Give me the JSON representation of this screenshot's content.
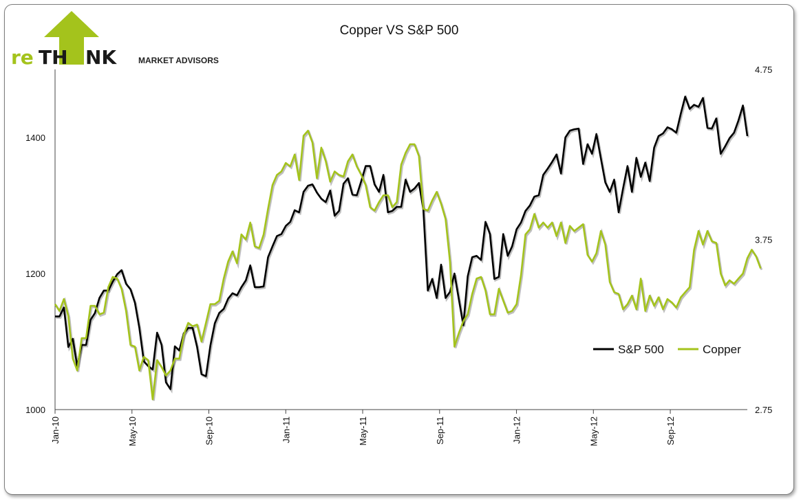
{
  "logo": {
    "prefix": "re",
    "th": "TH",
    "nk": "NK",
    "subtitle": "MARKET ADVISORS",
    "green": "#a4c31c",
    "dark": "#1a1a1a"
  },
  "chart_data": {
    "type": "line",
    "title": "Copper VS S&P 500",
    "xlabel": "",
    "x_tick_labels": [
      "Jan-10",
      "May-10",
      "Sep-10",
      "Jan-11",
      "May-11",
      "Sep-11",
      "Jan-12",
      "May-12",
      "Sep-12"
    ],
    "y_left": {
      "ticks": [
        "1000",
        "1200",
        "1400"
      ],
      "range": [
        1000,
        1500
      ]
    },
    "y_right": {
      "ticks": [
        "2.75",
        "3.75",
        "4.75"
      ],
      "range": [
        2.75,
        4.75
      ]
    },
    "grid": false,
    "legend": "right",
    "series": [
      {
        "name": "S&P 500",
        "axis": "left",
        "color": "#000000",
        "values": [
          1137,
          1137,
          1150,
          1092,
          1104,
          1064,
          1095,
          1095,
          1132,
          1142,
          1164,
          1175,
          1175,
          1188,
          1199,
          1205,
          1185,
          1177,
          1157,
          1120,
          1071,
          1064,
          1059,
          1113,
          1095,
          1040,
          1030,
          1093,
          1087,
          1112,
          1120,
          1120,
          1092,
          1052,
          1049,
          1094,
          1127,
          1142,
          1148,
          1163,
          1171,
          1168,
          1180,
          1190,
          1212,
          1180,
          1180,
          1181,
          1224,
          1240,
          1255,
          1258,
          1270,
          1276,
          1293,
          1290,
          1320,
          1329,
          1331,
          1319,
          1310,
          1305,
          1322,
          1285,
          1292,
          1332,
          1340,
          1316,
          1315,
          1336,
          1358,
          1358,
          1331,
          1320,
          1345,
          1290,
          1292,
          1298,
          1298,
          1338,
          1320,
          1325,
          1333,
          1294,
          1175,
          1192,
          1164,
          1213,
          1164,
          1173,
          1200,
          1162,
          1124,
          1196,
          1224,
          1226,
          1220,
          1276,
          1258,
          1192,
          1195,
          1258,
          1226,
          1240,
          1265,
          1275,
          1292,
          1300,
          1313,
          1315,
          1345,
          1354,
          1364,
          1375,
          1347,
          1400,
          1410,
          1412,
          1413,
          1361,
          1390,
          1376,
          1405,
          1369,
          1334,
          1320,
          1338,
          1290,
          1325,
          1358,
          1320,
          1370,
          1342,
          1363,
          1336,
          1385,
          1402,
          1406,
          1415,
          1412,
          1407,
          1435,
          1460,
          1442,
          1448,
          1445,
          1458,
          1414,
          1413,
          1428,
          1376,
          1387,
          1399,
          1407,
          1425,
          1447,
          1402
        ]
      },
      {
        "name": "Copper",
        "axis": "right",
        "color": "#a4c31c",
        "values": [
          3.37,
          3.33,
          3.4,
          3.3,
          3.05,
          2.98,
          3.17,
          3.17,
          3.36,
          3.36,
          3.31,
          3.32,
          3.47,
          3.53,
          3.52,
          3.46,
          3.33,
          3.13,
          3.12,
          2.98,
          3.06,
          3.04,
          2.81,
          3.04,
          3.0,
          2.95,
          2.98,
          3.05,
          3.05,
          3.19,
          3.26,
          3.24,
          3.25,
          3.15,
          3.26,
          3.37,
          3.37,
          3.39,
          3.52,
          3.62,
          3.68,
          3.61,
          3.78,
          3.75,
          3.85,
          3.71,
          3.7,
          3.78,
          3.93,
          4.07,
          4.13,
          4.15,
          4.2,
          4.18,
          4.25,
          4.1,
          4.36,
          4.39,
          4.32,
          4.11,
          4.29,
          4.21,
          4.09,
          4.15,
          4.13,
          4.12,
          4.21,
          4.25,
          4.18,
          4.13,
          4.07,
          3.94,
          3.92,
          3.97,
          4.01,
          4.01,
          3.94,
          3.97,
          4.19,
          4.26,
          4.31,
          4.31,
          4.24,
          3.93,
          3.92,
          3.98,
          4.03,
          3.96,
          3.87,
          3.62,
          3.12,
          3.2,
          3.27,
          3.31,
          3.43,
          3.52,
          3.53,
          3.45,
          3.31,
          3.31,
          3.46,
          3.39,
          3.32,
          3.33,
          3.37,
          3.54,
          3.78,
          3.81,
          3.9,
          3.82,
          3.85,
          3.82,
          3.85,
          3.77,
          3.85,
          3.73,
          3.83,
          3.8,
          3.82,
          3.84,
          3.66,
          3.62,
          3.67,
          3.8,
          3.72,
          3.5,
          3.44,
          3.43,
          3.34,
          3.37,
          3.42,
          3.34,
          3.52,
          3.33,
          3.42,
          3.36,
          3.41,
          3.34,
          3.4,
          3.38,
          3.35,
          3.41,
          3.44,
          3.47,
          3.69,
          3.8,
          3.72,
          3.8,
          3.74,
          3.73,
          3.55,
          3.48,
          3.51,
          3.49,
          3.52,
          3.55,
          3.64,
          3.69,
          3.65,
          3.58
        ]
      }
    ]
  }
}
